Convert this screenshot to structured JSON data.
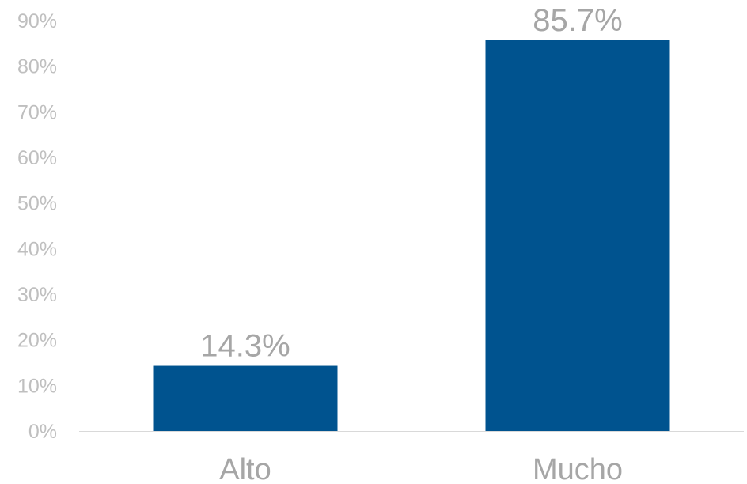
{
  "chart_data": {
    "type": "bar",
    "title": "",
    "xlabel": "",
    "ylabel": "",
    "categories": [
      "Alto",
      "Mucho"
    ],
    "values": [
      14.3,
      85.7
    ],
    "data_labels": [
      "14.3%",
      "85.7%"
    ],
    "ylim": [
      0,
      90
    ],
    "y_ticks": [
      "0%",
      "10%",
      "20%",
      "30%",
      "40%",
      "50%",
      "60%",
      "70%",
      "80%",
      "90%"
    ],
    "grid": false,
    "legend": "none",
    "bar_color": "#00538f",
    "axis_color": "#d9d9d9",
    "tick_label_color": "#bfbfbf",
    "label_color": "#a6a6a6"
  }
}
